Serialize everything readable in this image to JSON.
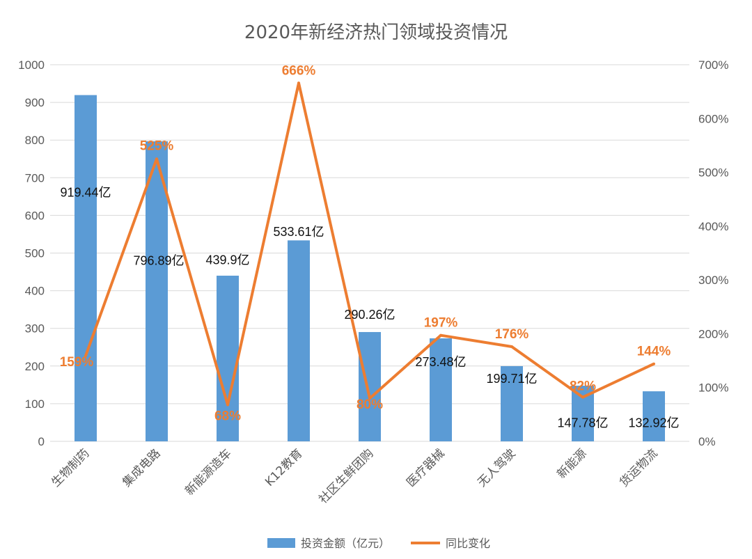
{
  "chart_data": {
    "type": "bar",
    "title": "2020年新经济热门领域投资情况",
    "categories": [
      "生物制药",
      "集成电路",
      "新能源造车",
      "K12教育",
      "社区生鲜团购",
      "医疗器械",
      "无人驾驶",
      "新能源",
      "货运物流"
    ],
    "series": [
      {
        "name": "投资金额（亿元）",
        "type": "bar",
        "axis": "left",
        "color": "#5B9BD5",
        "values": [
          919.44,
          796.89,
          439.9,
          533.61,
          290.26,
          273.48,
          199.71,
          147.78,
          132.92
        ],
        "labels": [
          "919.44亿",
          "796.89亿",
          "439.9亿",
          "533.61亿",
          "290.26亿",
          "273.48亿",
          "199.71亿",
          "147.78亿",
          "132.92亿"
        ]
      },
      {
        "name": "同比变化",
        "type": "line",
        "axis": "right",
        "color": "#ED7D31",
        "values": [
          159,
          525,
          68,
          666,
          80,
          197,
          176,
          82,
          144
        ],
        "labels": [
          "159%",
          "525%",
          "68%",
          "666%",
          "80%",
          "197%",
          "176%",
          "82%",
          "144%"
        ]
      }
    ],
    "y_left": {
      "min": 0,
      "max": 1000,
      "ticks": [
        "0",
        "100",
        "200",
        "300",
        "400",
        "500",
        "600",
        "700",
        "800",
        "900",
        "1000"
      ]
    },
    "y_right": {
      "min": 0,
      "max": 700,
      "ticks": [
        "0%",
        "100%",
        "200%",
        "300%",
        "400%",
        "500%",
        "600%",
        "700%"
      ]
    },
    "grid": true,
    "legend_position": "bottom"
  }
}
